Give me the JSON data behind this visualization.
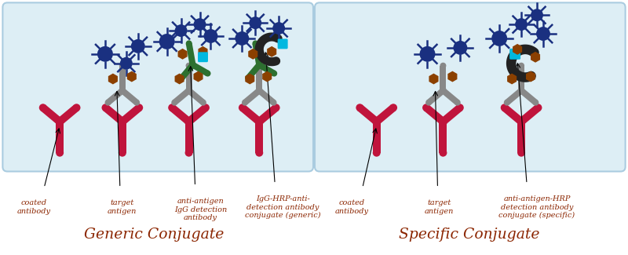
{
  "bg_color": "#ffffff",
  "panel_bg": "#ddeef5",
  "panel_border": "#aacce0",
  "text_color": "#8B2500",
  "coated_color": "#c0143c",
  "detect_gray_color": "#888888",
  "igg_green_color": "#2d7030",
  "hrp_conj_dark_color": "#222222",
  "antigen_color": "#8B4000",
  "hrp_cyan_color": "#00b8e0",
  "blue_ab_color": "#1a3080",
  "arrow_color": "#111111",
  "left_title": "Generic Conjugate",
  "right_title": "Specific Conjugate",
  "left_labels": [
    "coated\nantibody",
    "target\nantigen",
    "anti-antigen\nIgG detection\nantibody",
    "IgG-HRP-anti-\ndetection antibody\nconjugate (generic)"
  ],
  "right_labels": [
    "coated\nantibody",
    "target\nantigen",
    "anti-antigen-HRP\ndetection antibody\nconjugate (specific)"
  ]
}
